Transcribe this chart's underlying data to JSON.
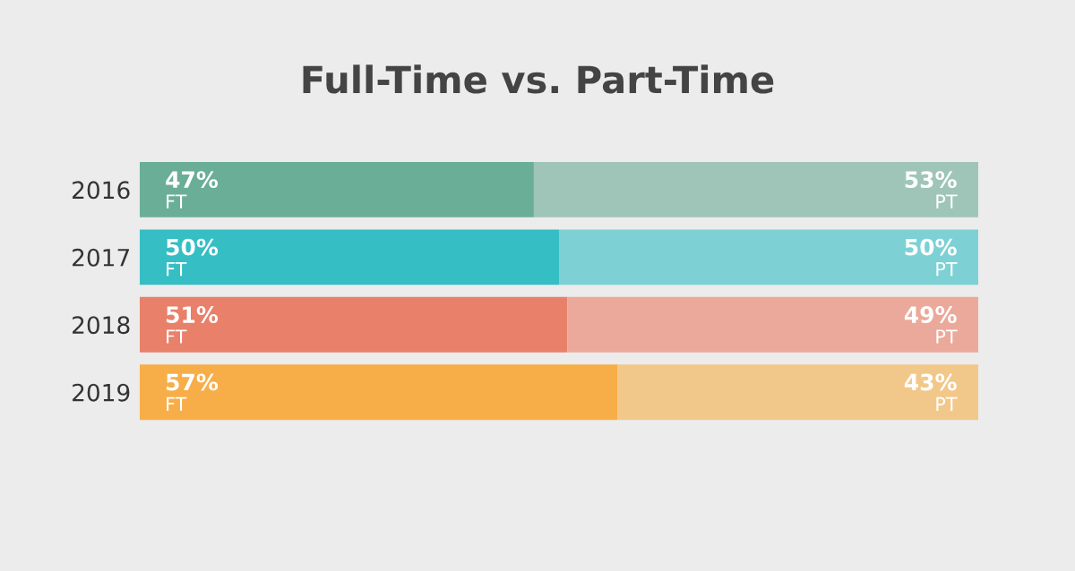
{
  "chart_data": {
    "type": "bar",
    "title": "Full-Time vs. Part-Time",
    "orientation": "horizontal",
    "stacked": true,
    "categories": [
      "2016",
      "2017",
      "2018",
      "2019"
    ],
    "series": [
      {
        "name": "FT",
        "colors": [
          "#6aae98",
          "#35bec4",
          "#e8806a",
          "#f7ae48"
        ],
        "values": [
          47,
          50,
          51,
          57
        ],
        "value_labels": [
          "47%",
          "50%",
          "51%",
          "57%"
        ]
      },
      {
        "name": "PT",
        "colors": [
          "#9fc5b8",
          "#7dd1d4",
          "#eba99b",
          "#f2c88a"
        ],
        "values": [
          53,
          50,
          49,
          43
        ],
        "value_labels": [
          "53%",
          "50%",
          "49%",
          "43%"
        ]
      }
    ],
    "grid": false,
    "legend": false
  }
}
